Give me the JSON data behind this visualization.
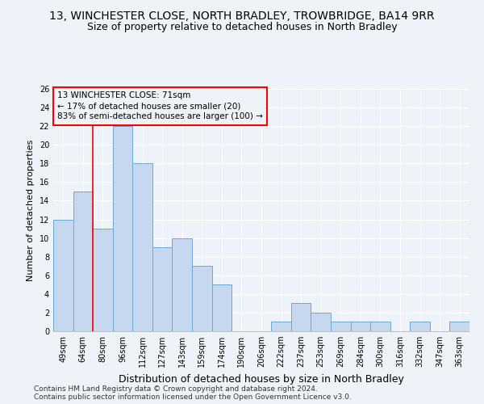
{
  "title1": "13, WINCHESTER CLOSE, NORTH BRADLEY, TROWBRIDGE, BA14 9RR",
  "title2": "Size of property relative to detached houses in North Bradley",
  "xlabel": "Distribution of detached houses by size in North Bradley",
  "ylabel": "Number of detached properties",
  "categories": [
    "49sqm",
    "64sqm",
    "80sqm",
    "96sqm",
    "112sqm",
    "127sqm",
    "143sqm",
    "159sqm",
    "174sqm",
    "190sqm",
    "206sqm",
    "222sqm",
    "237sqm",
    "253sqm",
    "269sqm",
    "284sqm",
    "300sqm",
    "316sqm",
    "332sqm",
    "347sqm",
    "363sqm"
  ],
  "values": [
    12,
    15,
    11,
    22,
    18,
    9,
    10,
    7,
    5,
    0,
    0,
    1,
    3,
    2,
    1,
    1,
    1,
    0,
    1,
    0,
    1
  ],
  "bar_color": "#c5d8f0",
  "bar_edge_color": "#6aaad4",
  "red_line_x": 1.5,
  "annotation_lines": [
    "13 WINCHESTER CLOSE: 71sqm",
    "← 17% of detached houses are smaller (20)",
    "83% of semi-detached houses are larger (100) →"
  ],
  "ylim": [
    0,
    26
  ],
  "yticks": [
    0,
    2,
    4,
    6,
    8,
    10,
    12,
    14,
    16,
    18,
    20,
    22,
    24,
    26
  ],
  "footer1": "Contains HM Land Registry data © Crown copyright and database right 2024.",
  "footer2": "Contains public sector information licensed under the Open Government Licence v3.0.",
  "bg_color": "#eef2f9",
  "title1_fontsize": 10,
  "title2_fontsize": 9,
  "xlabel_fontsize": 9,
  "ylabel_fontsize": 8,
  "tick_fontsize": 7,
  "annotation_fontsize": 7.5,
  "footer_fontsize": 6.5
}
